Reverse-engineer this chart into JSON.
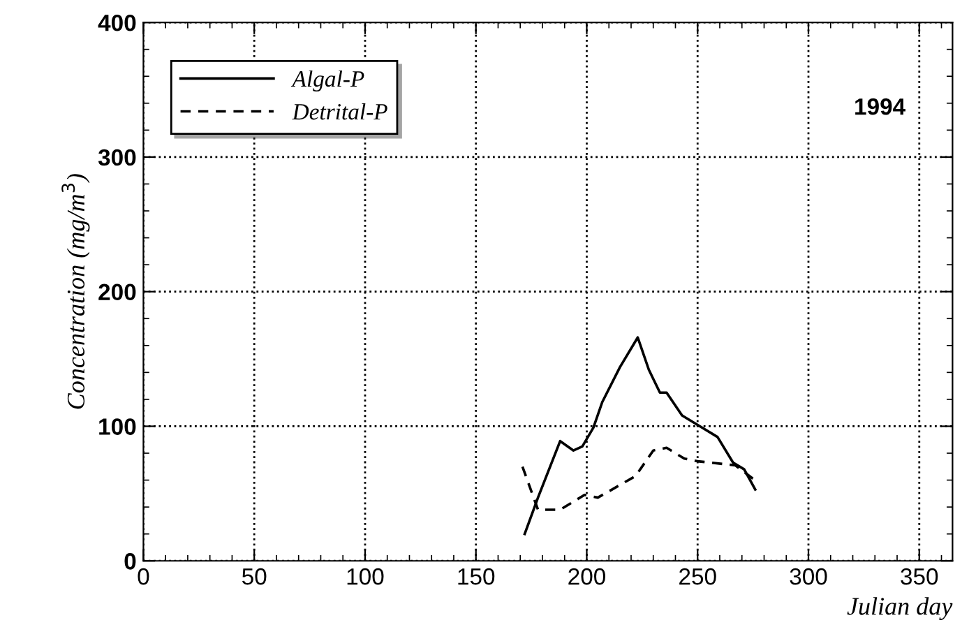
{
  "chart_data": {
    "type": "line",
    "xlabel": "Julian day",
    "ylabel": "Concentration (mg/m$^{3}$)",
    "annotations": [
      "1994"
    ],
    "xlim": [
      0,
      365
    ],
    "xticks": [
      0,
      50,
      100,
      150,
      200,
      250,
      300,
      350
    ],
    "ylim": [
      0,
      400
    ],
    "yticks": [
      0,
      100,
      200,
      300,
      400
    ],
    "grid": true,
    "legend": "top left",
    "series": [
      {
        "name": "Algal-P",
        "color": "#000000",
        "line_style": "solid",
        "x": [
          172,
          178,
          188,
          194,
          198,
          203,
          207,
          215,
          223,
          228,
          233,
          236,
          243,
          250,
          259,
          266,
          271,
          276
        ],
        "values": [
          20,
          47,
          89,
          82,
          85,
          99,
          118,
          144,
          166,
          142,
          125,
          125,
          108,
          101,
          92,
          73,
          68,
          53
        ]
      },
      {
        "name": "Detrital-P",
        "color": "#000000",
        "line_style": "dashed",
        "x": [
          171,
          178,
          188,
          199,
          205,
          222,
          230,
          236,
          244,
          250,
          267,
          275
        ],
        "values": [
          70,
          38,
          38,
          49,
          47,
          63,
          82,
          84,
          76,
          74,
          71,
          61
        ]
      }
    ]
  }
}
